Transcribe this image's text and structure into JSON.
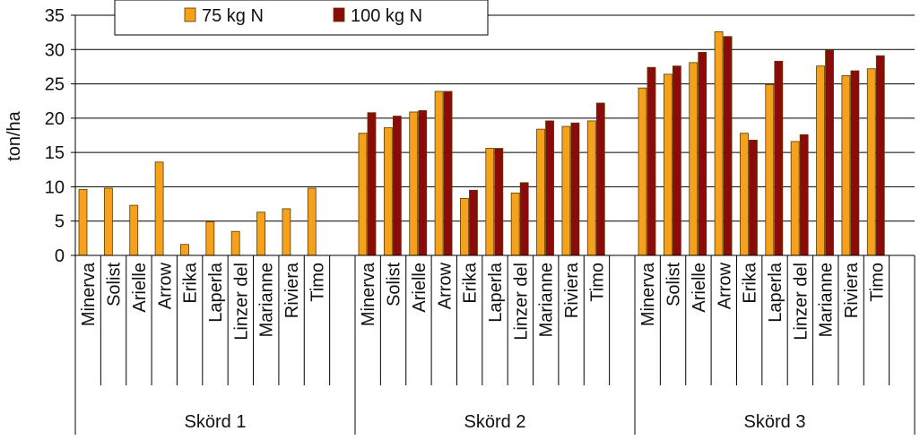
{
  "chart_data": {
    "type": "bar",
    "ylabel": "ton/ha",
    "ylim": [
      0,
      35
    ],
    "yticks": [
      0,
      5,
      10,
      15,
      20,
      25,
      30,
      35
    ],
    "grid": true,
    "legend_position": "top",
    "colors": {
      "75 kg N": "#F5A11C",
      "100 kg N": "#8B0A0A"
    },
    "groups": [
      {
        "name": "Skörd 1",
        "categories": [
          "Minerva",
          "Solist",
          "Arielle",
          "Arrow",
          "Erika",
          "Laperla",
          "Linzer del",
          "Marianne",
          "Riviera",
          "Timo"
        ],
        "series": [
          {
            "name": "75 kg N",
            "values": [
              9.6,
              9.8,
              7.3,
              13.6,
              1.6,
              4.9,
              3.5,
              6.3,
              6.8,
              9.8
            ]
          }
        ]
      },
      {
        "name": "Skörd 2",
        "categories": [
          "Minerva",
          "Solist",
          "Arielle",
          "Arrow",
          "Erika",
          "Laperla",
          "Linzer del",
          "Marianne",
          "Riviera",
          "Timo"
        ],
        "series": [
          {
            "name": "75 kg N",
            "values": [
              17.8,
              18.6,
              20.9,
              23.9,
              8.3,
              15.6,
              9.1,
              18.4,
              18.8,
              19.6
            ]
          },
          {
            "name": "100 kg N",
            "values": [
              20.8,
              20.3,
              21.1,
              23.9,
              9.5,
              15.6,
              10.6,
              19.6,
              19.3,
              22.2
            ]
          }
        ]
      },
      {
        "name": "Skörd 3",
        "categories": [
          "Minerva",
          "Solist",
          "Arielle",
          "Arrow",
          "Erika",
          "Laperla",
          "Linzer del",
          "Marianne",
          "Riviera",
          "Timo"
        ],
        "series": [
          {
            "name": "75 kg N",
            "values": [
              24.4,
              26.4,
              28.1,
              32.6,
              17.8,
              24.9,
              16.6,
              27.6,
              26.2,
              27.2
            ]
          },
          {
            "name": "100 kg N",
            "values": [
              27.4,
              27.6,
              29.6,
              31.9,
              16.8,
              28.3,
              17.6,
              29.9,
              26.9,
              29.1
            ]
          }
        ]
      }
    ],
    "legend": [
      "75 kg N",
      "100 kg N"
    ]
  }
}
